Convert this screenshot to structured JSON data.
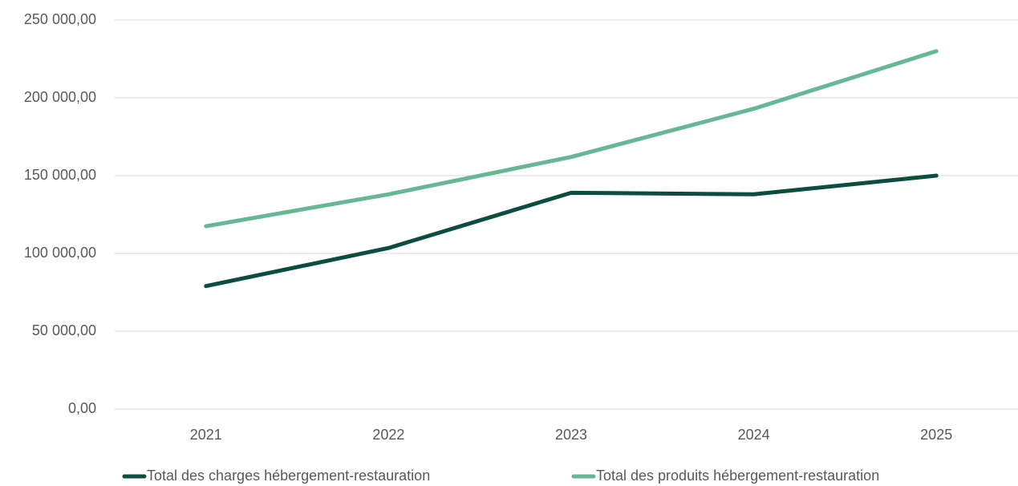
{
  "chart_data": {
    "type": "line",
    "categories": [
      "2021",
      "2022",
      "2023",
      "2024",
      "2025"
    ],
    "series": [
      {
        "name": "Total des charges hébergement-restauration",
        "color": "#0b4d3f",
        "values": [
          79000,
          103500,
          139000,
          138000,
          150000
        ]
      },
      {
        "name": "Total des produits hébergement-restauration",
        "color": "#66b894",
        "values": [
          117500,
          138000,
          162000,
          193000,
          230000
        ]
      }
    ],
    "ylim": [
      0,
      250000
    ],
    "yticks": [
      {
        "value": 0,
        "label": "0,00"
      },
      {
        "value": 50000,
        "label": "50 000,00"
      },
      {
        "value": 100000,
        "label": "100 000,00"
      },
      {
        "value": 150000,
        "label": "150 000,00"
      },
      {
        "value": 200000,
        "label": "200 000,00"
      },
      {
        "value": 250000,
        "label": "250 000,00"
      }
    ],
    "grid": true,
    "legend": "bottom"
  }
}
